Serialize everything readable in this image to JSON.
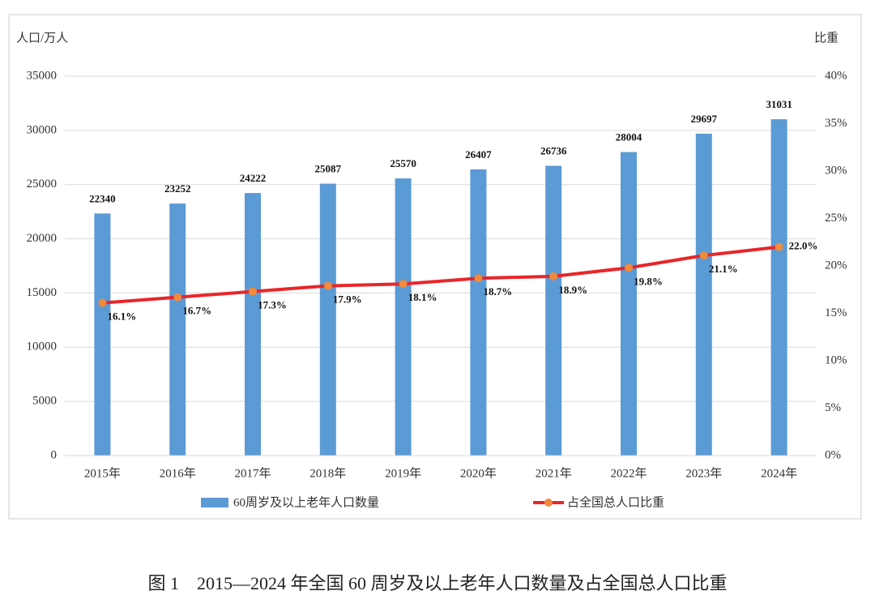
{
  "chart_data": {
    "type": "bar",
    "caption": "图 1　2015—2024 年全国 60 周岁及以上老年人口数量及占全国总人口比重",
    "y_label": "人口/万人",
    "y2_label": "比重",
    "categories": [
      "2015年",
      "2016年",
      "2017年",
      "2018年",
      "2019年",
      "2020年",
      "2021年",
      "2022年",
      "2023年",
      "2024年"
    ],
    "series": [
      {
        "name": "60周岁及以上老年人口数量",
        "type": "bar",
        "color": "#5b9bd5",
        "values": [
          22340,
          23252,
          24222,
          25087,
          25570,
          26407,
          26736,
          28004,
          29697,
          31031
        ]
      },
      {
        "name": "占全国总人口比重",
        "type": "line",
        "axis": "y2",
        "color": "#e8262a",
        "marker_color": "#f08a3c",
        "values": [
          16.1,
          16.7,
          17.3,
          17.9,
          18.1,
          18.7,
          18.9,
          19.8,
          21.1,
          22.0
        ],
        "value_labels": [
          "16.1%",
          "16.7%",
          "17.3%",
          "17.9%",
          "18.1%",
          "18.7%",
          "18.9%",
          "19.8%",
          "21.1%",
          "22.0%"
        ]
      }
    ],
    "ylim": [
      0,
      35000
    ],
    "yticks": [
      0,
      5000,
      10000,
      15000,
      20000,
      25000,
      30000,
      35000
    ],
    "y2lim": [
      0,
      40
    ],
    "y2ticks": [
      {
        "value": 0,
        "label": "0%"
      },
      {
        "value": 5,
        "label": "5%"
      },
      {
        "value": 10,
        "label": "10%"
      },
      {
        "value": 15,
        "label": "15%"
      },
      {
        "value": 20,
        "label": "20%"
      },
      {
        "value": 25,
        "label": "25%"
      },
      {
        "value": 30,
        "label": "30%"
      },
      {
        "value": 35,
        "label": "35%"
      },
      {
        "value": 40,
        "label": "40%"
      }
    ],
    "grid": true
  }
}
